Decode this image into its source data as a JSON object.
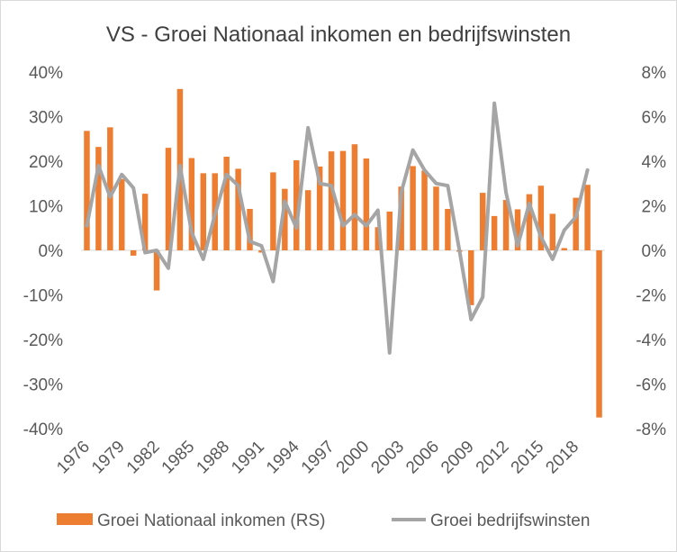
{
  "chart_data": {
    "type": "bar+line",
    "title": "VS - Groei Nationaal inkomen en bedrijfswinsten",
    "x": [
      1976,
      1977,
      1978,
      1979,
      1980,
      1981,
      1982,
      1983,
      1984,
      1985,
      1986,
      1987,
      1988,
      1989,
      1990,
      1991,
      1992,
      1993,
      1994,
      1995,
      1996,
      1997,
      1998,
      1999,
      2000,
      2001,
      2002,
      2003,
      2004,
      2005,
      2006,
      2007,
      2008,
      2009,
      2010,
      2011,
      2012,
      2013,
      2014,
      2015,
      2016,
      2017,
      2018,
      2019,
      2020
    ],
    "x_tick_labels": [
      "1976",
      "1979",
      "1982",
      "1985",
      "1988",
      "1991",
      "1994",
      "1997",
      "2000",
      "2003",
      "2006",
      "2009",
      "2012",
      "2015",
      "2018"
    ],
    "left_axis": {
      "ylim": [
        -40,
        40
      ],
      "ticks": [
        "40%",
        "30%",
        "20%",
        "10%",
        "0%",
        "-10%",
        "-20%",
        "-30%",
        "-40%"
      ]
    },
    "right_axis": {
      "ylim": [
        -8,
        8
      ],
      "ticks": [
        "8%",
        "6%",
        "4%",
        "2%",
        "0%",
        "-2%",
        "-4%",
        "-6%",
        "-8%"
      ]
    },
    "series": [
      {
        "name": "Groei Nationaal inkomen (RS)",
        "kind": "bar",
        "axis": "left",
        "color": "#ED7D31",
        "values": [
          26.8,
          23.2,
          27.6,
          16.0,
          -1.2,
          12.7,
          -9.0,
          23.0,
          36.2,
          20.7,
          17.3,
          17.3,
          21.0,
          18.3,
          9.3,
          -0.5,
          17.5,
          13.8,
          20.2,
          13.5,
          18.8,
          22.2,
          22.3,
          23.8,
          20.6,
          5.2,
          8.7,
          14.3,
          18.9,
          17.9,
          14.3,
          9.3,
          -0.3,
          -12.3,
          12.9,
          7.7,
          11.3,
          9.2,
          12.6,
          14.5,
          8.2,
          0.5,
          11.8,
          14.7,
          -37.5
        ]
      },
      {
        "name": "Groei bedrijfswinsten",
        "kind": "line",
        "axis": "right",
        "color": "#A5A5A5",
        "values": [
          1.1,
          3.8,
          2.4,
          3.4,
          2.8,
          -0.1,
          0.0,
          -0.8,
          3.8,
          0.8,
          -0.4,
          1.6,
          3.4,
          2.9,
          0.4,
          0.2,
          -1.4,
          2.2,
          1.0,
          5.5,
          3.0,
          2.9,
          1.1,
          1.6,
          1.1,
          1.8,
          -4.6,
          2.6,
          4.5,
          3.6,
          3.0,
          2.9,
          0.0,
          -3.1,
          -2.1,
          6.6,
          2.6,
          0.2,
          2.1,
          0.6,
          -0.4,
          0.9,
          1.5,
          3.6,
          null
        ]
      }
    ],
    "legend": {
      "position": "bottom"
    },
    "grid": false
  }
}
